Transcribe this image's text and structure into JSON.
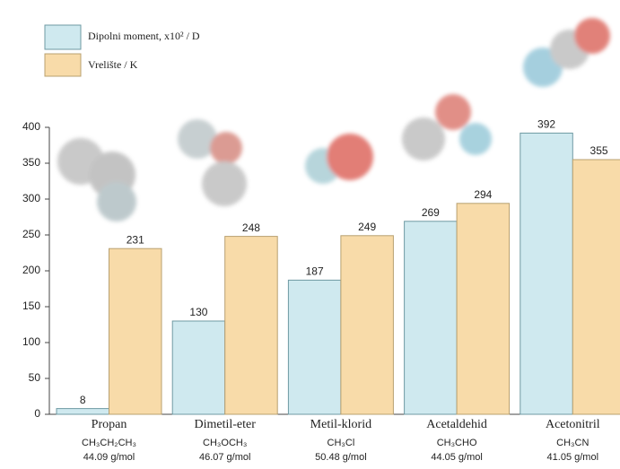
{
  "chart_data": {
    "type": "bar",
    "categories": [
      "Propan",
      "Dimetil-eter",
      "Metil-klorid",
      "Acetaldehid",
      "Acetonitril"
    ],
    "formulas": [
      "CH₃CH₂CH₃",
      "CH₃OCH₃",
      "CH₃Cl",
      "CH₃CHO",
      "CH₃CN"
    ],
    "masses": [
      "44.09 g/mol",
      "46.07 g/mol",
      "50.48 g/mol",
      "44.05 g/mol",
      "41.05 g/mol"
    ],
    "series": [
      {
        "name": "Dipolni moment, x10² / D",
        "color": "#cfe9ef",
        "values": [
          8,
          130,
          187,
          269,
          392
        ]
      },
      {
        "name": "Vrelište / K",
        "color": "#f8dba9",
        "values": [
          231,
          248,
          249,
          294,
          355
        ]
      }
    ],
    "ylim": [
      0,
      400
    ],
    "yticks": [
      0,
      50,
      100,
      150,
      200,
      250,
      300,
      350,
      400
    ],
    "grid": false
  }
}
